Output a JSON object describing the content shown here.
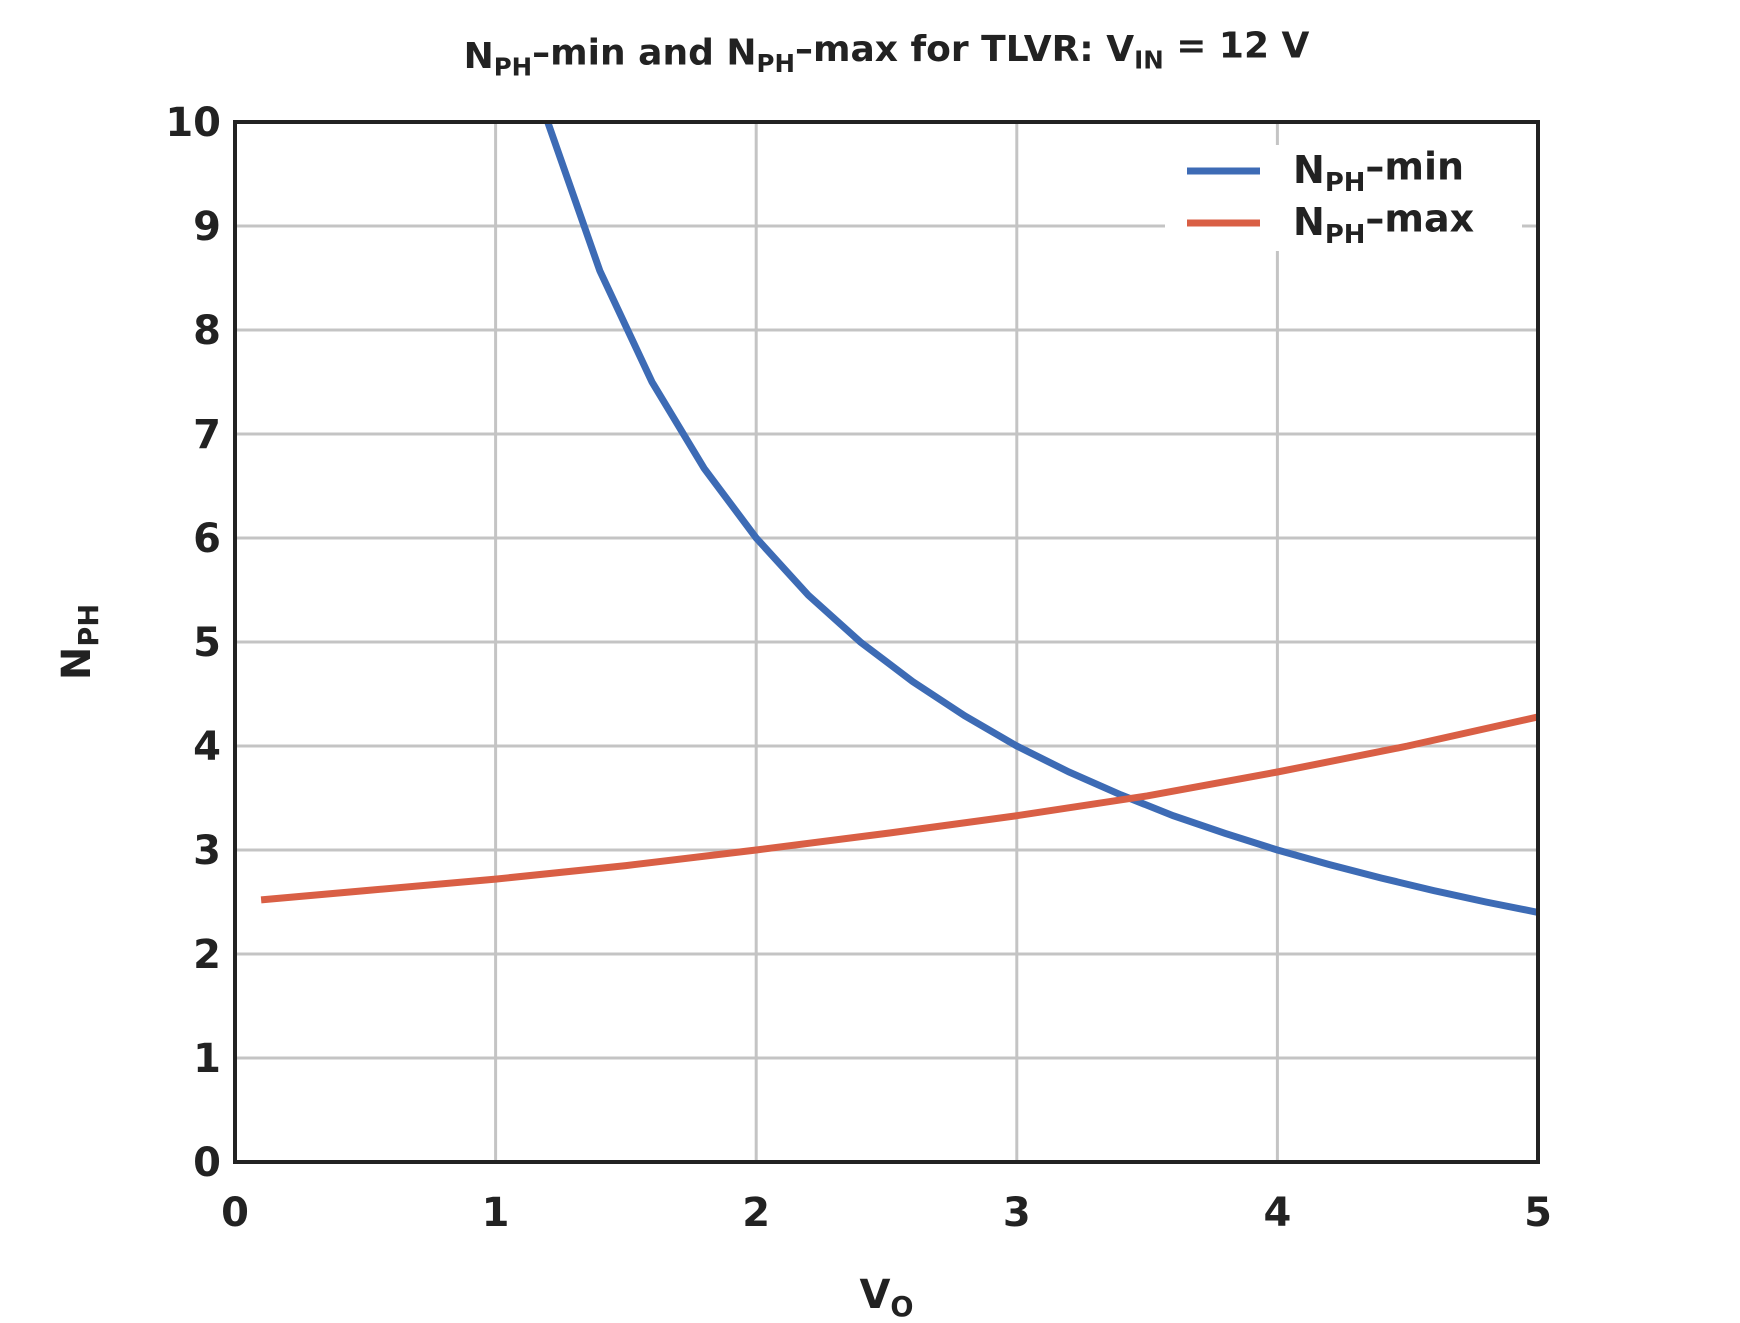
{
  "chart_data": {
    "type": "line",
    "title": [
      "N",
      "PH",
      "–min and N",
      "PH",
      "–max for TLVR: V",
      "IN",
      " = 12 V"
    ],
    "xlabel": [
      "V",
      "O"
    ],
    "ylabel": [
      "N",
      "PH"
    ],
    "xlim": [
      0,
      5
    ],
    "xticks": [
      0,
      1,
      2,
      3,
      4,
      5
    ],
    "ylim": [
      0,
      10
    ],
    "yticks": [
      0,
      1,
      2,
      3,
      4,
      5,
      6,
      7,
      8,
      9,
      10
    ],
    "grid": true,
    "legend": "upper right",
    "series": [
      {
        "name": [
          "N",
          "PH",
          "–min"
        ],
        "color": "#3d6bb5",
        "x": [
          1.2,
          1.4,
          1.6,
          1.8,
          2.0,
          2.2,
          2.4,
          2.6,
          2.8,
          3.0,
          3.2,
          3.4,
          3.6,
          3.8,
          4.0,
          4.2,
          4.4,
          4.6,
          4.8,
          5.0
        ],
        "values": [
          10,
          8.57,
          7.5,
          6.67,
          6,
          5.45,
          5,
          4.62,
          4.29,
          4,
          3.75,
          3.53,
          3.33,
          3.16,
          3,
          2.86,
          2.73,
          2.61,
          2.5,
          2.4
        ]
      },
      {
        "name": [
          "N",
          "PH",
          "–max"
        ],
        "color": "#d95f45",
        "x": [
          0.1,
          0.5,
          1.0,
          1.5,
          2.0,
          2.5,
          3.0,
          3.5,
          4.0,
          4.5,
          5.0
        ],
        "values": [
          2.52,
          2.61,
          2.72,
          2.85,
          3.0,
          3.16,
          3.33,
          3.52,
          3.75,
          4.0,
          4.28
        ]
      }
    ]
  }
}
